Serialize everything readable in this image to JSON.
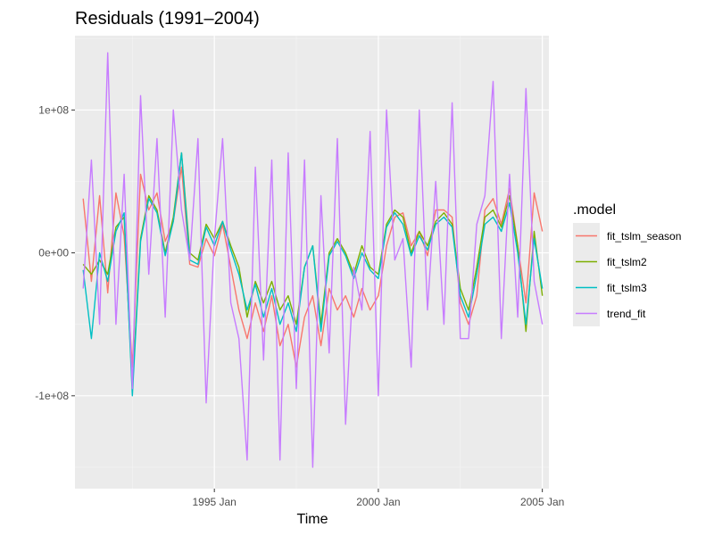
{
  "chart_data": {
    "type": "line",
    "title": "Residuals (1991–2004)",
    "xlabel": "Time",
    "ylabel": "",
    "legend_title": ".model",
    "legend_position": "right",
    "grid": true,
    "xlim": [
      1990.75,
      2005.2
    ],
    "ylim": [
      -165000000,
      152000000
    ],
    "xticks": [
      {
        "value": 1995,
        "label": "1995 Jan"
      },
      {
        "value": 2000,
        "label": "2000 Jan"
      },
      {
        "value": 2005,
        "label": "2005 Jan"
      }
    ],
    "yticks": [
      {
        "value": -100000000,
        "label": "-1e+08"
      },
      {
        "value": 0,
        "label": "0e+00"
      },
      {
        "value": 100000000,
        "label": "1e+08"
      }
    ],
    "x": [
      1991.0,
      1991.25,
      1991.5,
      1991.75,
      1992.0,
      1992.25,
      1992.5,
      1992.75,
      1993.0,
      1993.25,
      1993.5,
      1993.75,
      1994.0,
      1994.25,
      1994.5,
      1994.75,
      1995.0,
      1995.25,
      1995.5,
      1995.75,
      1996.0,
      1996.25,
      1996.5,
      1996.75,
      1997.0,
      1997.25,
      1997.5,
      1997.75,
      1998.0,
      1998.25,
      1998.5,
      1998.75,
      1999.0,
      1999.25,
      1999.5,
      1999.75,
      2000.0,
      2000.25,
      2000.5,
      2000.75,
      2001.0,
      2001.25,
      2001.5,
      2001.75,
      2002.0,
      2002.25,
      2002.5,
      2002.75,
      2003.0,
      2003.25,
      2003.5,
      2003.75,
      2004.0,
      2004.25,
      2004.5,
      2004.75,
      2005.0
    ],
    "series": [
      {
        "name": "fit_tslm_season",
        "color": "#F8766D",
        "values": [
          38000000,
          -20000000,
          40000000,
          -28000000,
          42000000,
          12000000,
          -80000000,
          55000000,
          30000000,
          42000000,
          8000000,
          22000000,
          60000000,
          -8000000,
          -10000000,
          10000000,
          -2000000,
          20000000,
          -10000000,
          -40000000,
          -60000000,
          -35000000,
          -55000000,
          -30000000,
          -65000000,
          -50000000,
          -80000000,
          -45000000,
          -30000000,
          -65000000,
          -25000000,
          -40000000,
          -30000000,
          -45000000,
          -25000000,
          -40000000,
          -30000000,
          5000000,
          25000000,
          28000000,
          5000000,
          15000000,
          -2000000,
          30000000,
          30000000,
          25000000,
          -35000000,
          -50000000,
          -30000000,
          30000000,
          38000000,
          20000000,
          45000000,
          5000000,
          -35000000,
          42000000,
          15000000
        ]
      },
      {
        "name": "fit_tslm2",
        "color": "#7CAE00",
        "values": [
          -8000000,
          -15000000,
          -5000000,
          -15000000,
          18000000,
          25000000,
          -95000000,
          10000000,
          40000000,
          30000000,
          0,
          25000000,
          70000000,
          0,
          -5000000,
          20000000,
          10000000,
          22000000,
          5000000,
          -10000000,
          -45000000,
          -20000000,
          -35000000,
          -20000000,
          -40000000,
          -30000000,
          -50000000,
          -10000000,
          5000000,
          -50000000,
          0,
          10000000,
          0,
          -15000000,
          5000000,
          -10000000,
          -15000000,
          20000000,
          30000000,
          25000000,
          0,
          15000000,
          5000000,
          22000000,
          28000000,
          20000000,
          -25000000,
          -40000000,
          -10000000,
          25000000,
          30000000,
          18000000,
          40000000,
          5000000,
          -55000000,
          15000000,
          -30000000
        ]
      },
      {
        "name": "fit_tslm3",
        "color": "#00BFC4",
        "values": [
          -12000000,
          -60000000,
          0,
          -20000000,
          15000000,
          28000000,
          -100000000,
          8000000,
          38000000,
          28000000,
          -2000000,
          22000000,
          70000000,
          -5000000,
          -8000000,
          18000000,
          5000000,
          22000000,
          2000000,
          -15000000,
          -40000000,
          -22000000,
          -45000000,
          -25000000,
          -50000000,
          -35000000,
          -55000000,
          -10000000,
          5000000,
          -55000000,
          -2000000,
          8000000,
          -2000000,
          -18000000,
          0,
          -12000000,
          -18000000,
          18000000,
          28000000,
          20000000,
          -2000000,
          12000000,
          2000000,
          20000000,
          25000000,
          18000000,
          -30000000,
          -45000000,
          -15000000,
          20000000,
          25000000,
          15000000,
          35000000,
          0,
          -50000000,
          10000000,
          -25000000
        ]
      },
      {
        "name": "trend_fit",
        "color": "#C77CFF",
        "values": [
          -25000000,
          65000000,
          -50000000,
          140000000,
          -50000000,
          55000000,
          -95000000,
          110000000,
          -15000000,
          80000000,
          -45000000,
          100000000,
          30000000,
          -5000000,
          80000000,
          -105000000,
          10000000,
          80000000,
          -35000000,
          -60000000,
          -145000000,
          60000000,
          -75000000,
          65000000,
          -145000000,
          70000000,
          -95000000,
          65000000,
          -150000000,
          40000000,
          -70000000,
          80000000,
          -120000000,
          -10000000,
          -40000000,
          85000000,
          -100000000,
          100000000,
          -5000000,
          10000000,
          -80000000,
          100000000,
          -40000000,
          50000000,
          -50000000,
          105000000,
          -60000000,
          -60000000,
          20000000,
          40000000,
          120000000,
          -60000000,
          55000000,
          -45000000,
          115000000,
          -20000000,
          -50000000
        ]
      }
    ]
  }
}
